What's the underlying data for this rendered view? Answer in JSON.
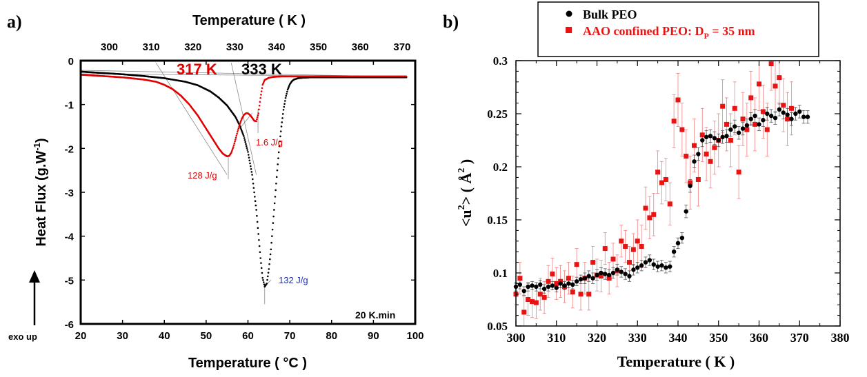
{
  "chart_data": [
    {
      "panel_label": "a)",
      "type": "line",
      "title": "",
      "xlabel": "Temperature ( °C )",
      "ylabel": "Heat Flux  (g.W",
      "ylabel_sup": "-1",
      "ylabel_end": ")",
      "x2label": "Temperature ( K )",
      "xlim": [
        20,
        100
      ],
      "ylim": [
        -6,
        0
      ],
      "x_ticks": [
        20,
        30,
        40,
        50,
        60,
        70,
        80,
        90,
        100
      ],
      "y_ticks": [
        0,
        -1,
        -2,
        -3,
        -4,
        -5,
        -6
      ],
      "x2_ticks": [
        300,
        310,
        320,
        330,
        340,
        350,
        360,
        370
      ],
      "annotations": {
        "onset_confined": "317 K",
        "onset_bulk": "333 K",
        "enthalpy_confined_main": "128 J/g",
        "enthalpy_confined_second": "1.6 J/g",
        "enthalpy_bulk": "132 J/g",
        "rate": "20 K.min",
        "exo_up": "exo up"
      },
      "colors": {
        "bulk": "#000000",
        "confined": "#e00000",
        "bulk_label": "#1f2ea8"
      },
      "series": [
        {
          "color": "#000000",
          "x": [
            20,
            25,
            30,
            35,
            40,
            45,
            48,
            51,
            53,
            55,
            57,
            58,
            59,
            60,
            61,
            62,
            62.5,
            63,
            63.5,
            64,
            64.5,
            65,
            65.5,
            66,
            66.5,
            67,
            67.5,
            68,
            68.5,
            69,
            69.5,
            70,
            70.5,
            71,
            72,
            73,
            75,
            80,
            90,
            98
          ],
          "y": [
            -0.25,
            -0.28,
            -0.31,
            -0.35,
            -0.4,
            -0.48,
            -0.56,
            -0.7,
            -0.84,
            -1.02,
            -1.28,
            -1.47,
            -1.72,
            -2.08,
            -2.6,
            -3.4,
            -3.95,
            -4.5,
            -4.95,
            -5.15,
            -5.08,
            -4.75,
            -4.3,
            -3.7,
            -3.1,
            -2.5,
            -1.95,
            -1.5,
            -1.12,
            -0.85,
            -0.66,
            -0.54,
            -0.47,
            -0.43,
            -0.4,
            -0.39,
            -0.38,
            -0.38,
            -0.38,
            -0.38
          ]
        },
        {
          "color": "#e00000",
          "x": [
            20,
            25,
            30,
            35,
            38,
            40,
            42,
            44,
            46,
            48,
            50,
            51,
            52,
            53,
            54,
            55,
            55.5,
            56,
            56.5,
            57,
            57.5,
            58,
            58.5,
            59,
            59.5,
            60,
            60.5,
            61,
            61.5,
            62,
            62.5,
            63,
            63.5,
            64,
            65,
            66,
            68,
            70,
            80,
            90,
            98
          ],
          "y": [
            -0.32,
            -0.35,
            -0.38,
            -0.43,
            -0.48,
            -0.55,
            -0.65,
            -0.8,
            -1.0,
            -1.25,
            -1.55,
            -1.7,
            -1.85,
            -2.0,
            -2.12,
            -2.18,
            -2.17,
            -2.1,
            -1.97,
            -1.8,
            -1.62,
            -1.46,
            -1.33,
            -1.24,
            -1.2,
            -1.2,
            -1.24,
            -1.3,
            -1.37,
            -1.38,
            -1.2,
            -0.85,
            -0.55,
            -0.44,
            -0.39,
            -0.37,
            -0.36,
            -0.36,
            -0.36,
            -0.36,
            -0.36
          ]
        }
      ]
    },
    {
      "panel_label": "b)",
      "type": "scatter",
      "title": "",
      "xlabel": "Temperature  ( K )",
      "ylabel_main": "<u",
      "ylabel_sup": "2",
      "ylabel_end": ">   ( Å",
      "ylabel_sup2": "2",
      "ylabel_close": " )",
      "xlim": [
        300,
        380
      ],
      "ylim": [
        0.05,
        0.3
      ],
      "x_ticks": [
        300,
        310,
        320,
        330,
        340,
        350,
        360,
        370,
        380
      ],
      "y_ticks": [
        0.05,
        0.1,
        0.15,
        0.2,
        0.25,
        0.3
      ],
      "legend": {
        "placement": "top",
        "bulk": "Bulk PEO",
        "confined_prefix": "AAO confined PEO: D",
        "confined_sub": "P",
        "confined_suffix": " = 35 nm"
      },
      "series": [
        {
          "name": "Bulk PEO",
          "color": "#000000",
          "x": [
            300,
            301,
            302,
            303,
            304,
            305,
            306,
            307,
            308,
            309,
            310,
            311,
            312,
            313,
            314,
            315,
            316,
            317,
            318,
            319,
            320,
            321,
            322,
            323,
            324,
            325,
            326,
            327,
            328,
            329,
            330,
            331,
            332,
            333,
            334,
            335,
            336,
            337,
            338,
            339,
            340,
            341,
            342,
            343,
            344,
            345,
            346,
            347,
            348,
            349,
            350,
            351,
            352,
            353,
            354,
            355,
            356,
            357,
            358,
            359,
            360,
            361,
            362,
            363,
            364,
            365,
            366,
            367,
            368,
            369,
            370,
            371,
            372
          ],
          "y": [
            0.087,
            0.089,
            0.083,
            0.087,
            0.088,
            0.087,
            0.089,
            0.085,
            0.087,
            0.088,
            0.086,
            0.09,
            0.088,
            0.09,
            0.089,
            0.092,
            0.094,
            0.095,
            0.097,
            0.095,
            0.098,
            0.1,
            0.099,
            0.098,
            0.1,
            0.103,
            0.101,
            0.099,
            0.097,
            0.103,
            0.105,
            0.107,
            0.11,
            0.112,
            0.108,
            0.106,
            0.107,
            0.105,
            0.106,
            0.12,
            0.128,
            0.133,
            0.158,
            0.182,
            0.205,
            0.212,
            0.225,
            0.228,
            0.229,
            0.227,
            0.225,
            0.228,
            0.229,
            0.235,
            0.238,
            0.232,
            0.236,
            0.239,
            0.245,
            0.248,
            0.24,
            0.244,
            0.25,
            0.248,
            0.246,
            0.254,
            0.251,
            0.249,
            0.245,
            0.25,
            0.252,
            0.247,
            0.247
          ],
          "err": [
            0.004,
            0.004,
            0.004,
            0.004,
            0.004,
            0.004,
            0.004,
            0.004,
            0.004,
            0.004,
            0.004,
            0.004,
            0.004,
            0.004,
            0.004,
            0.004,
            0.004,
            0.005,
            0.005,
            0.005,
            0.005,
            0.005,
            0.005,
            0.005,
            0.005,
            0.005,
            0.005,
            0.005,
            0.005,
            0.005,
            0.005,
            0.005,
            0.005,
            0.005,
            0.005,
            0.005,
            0.005,
            0.005,
            0.005,
            0.005,
            0.005,
            0.005,
            0.006,
            0.006,
            0.006,
            0.006,
            0.006,
            0.006,
            0.006,
            0.006,
            0.006,
            0.006,
            0.006,
            0.006,
            0.006,
            0.006,
            0.006,
            0.006,
            0.006,
            0.006,
            0.006,
            0.006,
            0.006,
            0.006,
            0.006,
            0.006,
            0.006,
            0.006,
            0.006,
            0.006,
            0.006,
            0.006,
            0.006
          ]
        },
        {
          "name": "AAO confined PEO: DP = 35 nm",
          "color": "#e81414",
          "x": [
            300,
            301,
            302,
            303,
            304,
            305,
            306,
            307,
            308,
            309,
            310,
            311,
            312,
            313,
            314,
            315,
            316,
            317,
            318,
            319,
            320,
            321,
            322,
            323,
            324,
            325,
            326,
            327,
            328,
            329,
            330,
            331,
            332,
            333,
            334,
            335,
            336,
            337,
            338,
            339,
            340,
            341,
            342,
            343,
            344,
            345,
            346,
            347,
            348,
            349,
            350,
            351,
            352,
            353,
            354,
            355,
            356,
            357,
            358,
            359,
            360,
            361,
            362,
            363,
            364,
            365,
            366,
            367,
            368
          ],
          "y": [
            0.08,
            0.095,
            0.063,
            0.075,
            0.073,
            0.072,
            0.08,
            0.077,
            0.092,
            0.099,
            0.09,
            0.092,
            0.087,
            0.095,
            0.082,
            0.108,
            0.08,
            0.095,
            0.08,
            0.11,
            0.098,
            0.097,
            0.123,
            0.095,
            0.113,
            0.102,
            0.13,
            0.125,
            0.11,
            0.122,
            0.13,
            0.125,
            0.161,
            0.152,
            0.155,
            0.195,
            0.185,
            0.188,
            0.165,
            0.243,
            0.263,
            0.235,
            0.21,
            0.185,
            0.22,
            0.188,
            0.23,
            0.212,
            0.205,
            0.218,
            0.225,
            0.257,
            0.24,
            0.225,
            0.255,
            0.195,
            0.245,
            0.235,
            0.265,
            0.24,
            0.278,
            0.252,
            0.235,
            0.297,
            0.276,
            0.284,
            0.258,
            0.245,
            0.255
          ],
          "err": [
            0.01,
            0.015,
            0.015,
            0.015,
            0.015,
            0.015,
            0.015,
            0.015,
            0.015,
            0.015,
            0.015,
            0.015,
            0.015,
            0.015,
            0.015,
            0.015,
            0.015,
            0.015,
            0.015,
            0.015,
            0.015,
            0.015,
            0.015,
            0.015,
            0.015,
            0.015,
            0.015,
            0.015,
            0.015,
            0.015,
            0.02,
            0.02,
            0.02,
            0.02,
            0.02,
            0.02,
            0.02,
            0.02,
            0.02,
            0.025,
            0.025,
            0.025,
            0.025,
            0.025,
            0.025,
            0.025,
            0.025,
            0.025,
            0.025,
            0.025,
            0.025,
            0.025,
            0.025,
            0.025,
            0.025,
            0.025,
            0.025,
            0.025,
            0.025,
            0.025,
            0.025,
            0.025,
            0.025,
            0.025,
            0.025,
            0.025,
            0.025,
            0.025,
            0.025
          ]
        }
      ]
    }
  ]
}
